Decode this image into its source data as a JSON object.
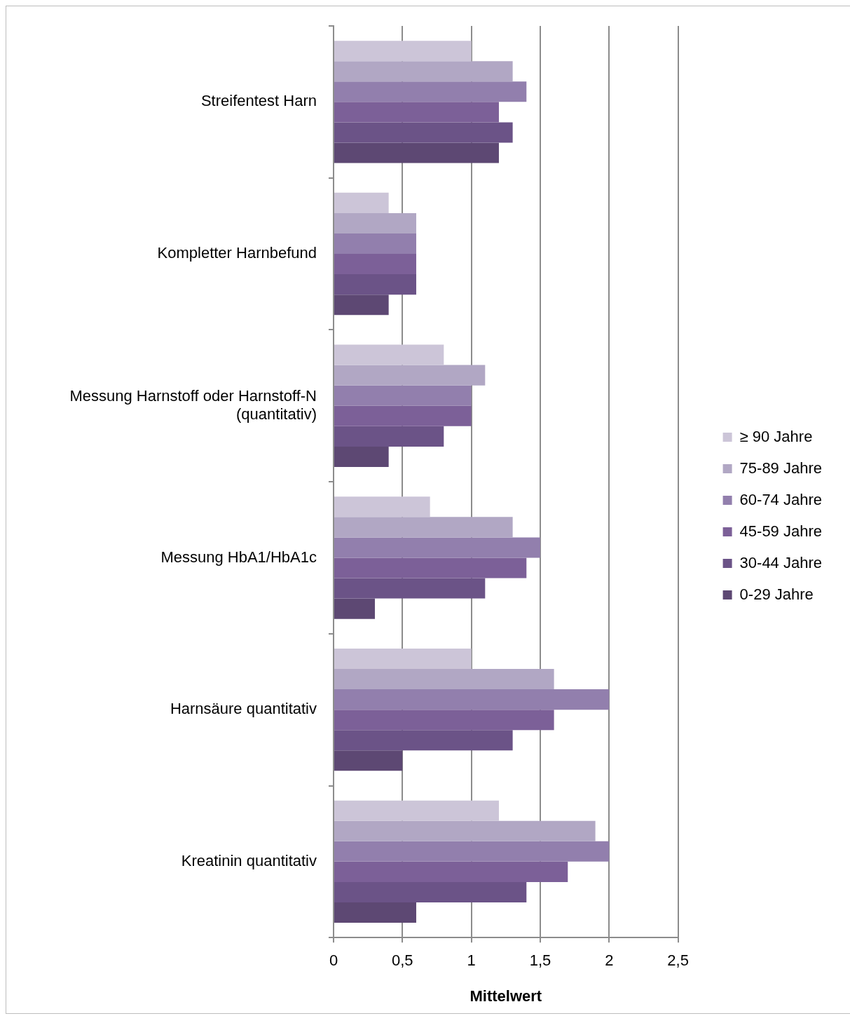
{
  "chart_data": {
    "type": "bar",
    "orientation": "horizontal",
    "categories": [
      "Streifentest Harn",
      "Kompletter Harnbefund",
      "Messung Harnstoff oder Harnstoff-N (quantitativ)",
      "Messung HbA1/HbA1c",
      "Harnsäure quantitativ",
      "Kreatinin quantitativ"
    ],
    "series": [
      {
        "name": "≥ 90 Jahre",
        "color": "#ccc5d8",
        "values": [
          1.0,
          0.4,
          0.8,
          0.7,
          1.0,
          1.2
        ]
      },
      {
        "name": "75-89 Jahre",
        "color": "#b1a7c4",
        "values": [
          1.3,
          0.6,
          1.1,
          1.3,
          1.6,
          1.9
        ]
      },
      {
        "name": "60-74 Jahre",
        "color": "#927fad",
        "values": [
          1.4,
          0.6,
          1.0,
          1.5,
          2.0,
          2.0
        ]
      },
      {
        "name": "45-59 Jahre",
        "color": "#7c6098",
        "values": [
          1.2,
          0.6,
          1.0,
          1.4,
          1.6,
          1.7
        ]
      },
      {
        "name": "30-44 Jahre",
        "color": "#6b5387",
        "values": [
          1.3,
          0.6,
          0.8,
          1.1,
          1.3,
          1.4
        ]
      },
      {
        "name": "0-29 Jahre",
        "color": "#5d4873",
        "values": [
          1.2,
          0.4,
          0.4,
          0.3,
          0.5,
          0.6
        ]
      }
    ],
    "xlabel": "Mittelwert",
    "xlim": [
      0,
      2.5
    ],
    "xticks": [
      {
        "value": 0,
        "label": "0"
      },
      {
        "value": 0.5,
        "label": "0,5"
      },
      {
        "value": 1,
        "label": "1"
      },
      {
        "value": 1.5,
        "label": "1,5"
      },
      {
        "value": 2,
        "label": "2"
      },
      {
        "value": 2.5,
        "label": "2,5"
      }
    ],
    "grid": "x",
    "legend": "right"
  }
}
